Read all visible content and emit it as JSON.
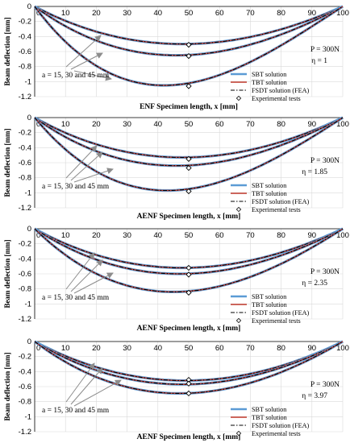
{
  "chart_data": [
    {
      "type": "line",
      "xlabel": "ENF Specimen length, x [mm]",
      "ylabel": "Beam deflection [mm]",
      "xlim": [
        0,
        100
      ],
      "ylim": [
        -1.2,
        0
      ],
      "xticks": [
        "0",
        "10",
        "20",
        "30",
        "40",
        "50",
        "60",
        "70",
        "80",
        "90",
        "100"
      ],
      "yticks": [
        "0",
        "-0.2",
        "-0.4",
        "-0.6",
        "-0.8",
        "-1",
        "-1.2"
      ],
      "annotations": [
        "P = 300N",
        "η = 1"
      ],
      "crack_label": "a = 15, 30 and 45 mm",
      "legend": [
        "SBT solution",
        "TBT solution",
        "FSDT solution (FEA)",
        "Experimental tests"
      ],
      "curves": [
        {
          "a": 15,
          "min_x": 48,
          "min_y": -0.5
        },
        {
          "a": 30,
          "min_x": 46,
          "min_y": -0.65
        },
        {
          "a": 45,
          "min_x": 42,
          "min_y": -1.05
        }
      ],
      "experimental": [
        {
          "x": 50,
          "y": -0.51
        },
        {
          "x": 50,
          "y": -0.66
        },
        {
          "x": 50,
          "y": -1.06
        }
      ]
    },
    {
      "type": "line",
      "xlabel": "AENF Specimen length, x [mm]",
      "ylabel": "Beam deflection [mm]",
      "xlim": [
        0,
        100
      ],
      "ylim": [
        -1.2,
        0
      ],
      "xticks": [
        "0",
        "10",
        "20",
        "30",
        "40",
        "50",
        "60",
        "70",
        "80",
        "90",
        "100"
      ],
      "yticks": [
        "0",
        "-0.2",
        "-0.4",
        "-0.6",
        "-0.8",
        "-1",
        "-1.2"
      ],
      "annotations": [
        "P = 300N",
        "η = 1.85"
      ],
      "crack_label": "a = 15, 30 and 45 mm",
      "legend": [
        "SBT solution",
        "TBT solution",
        "FSDT solution (FEA)",
        "Experimental tests"
      ],
      "curves": [
        {
          "a": 15,
          "min_x": 48,
          "min_y": -0.53
        },
        {
          "a": 30,
          "min_x": 46,
          "min_y": -0.64
        },
        {
          "a": 45,
          "min_x": 43,
          "min_y": -0.97
        }
      ],
      "experimental": [
        {
          "x": 50,
          "y": -0.55
        },
        {
          "x": 50,
          "y": -0.67
        },
        {
          "x": 50,
          "y": -0.98
        }
      ]
    },
    {
      "type": "line",
      "xlabel": "AENF Specimen length, x [mm]",
      "ylabel": "Beam deflection [mm]",
      "xlim": [
        0,
        100
      ],
      "ylim": [
        -1.2,
        0
      ],
      "xticks": [
        "0",
        "10",
        "20",
        "30",
        "40",
        "50",
        "60",
        "70",
        "80",
        "90",
        "100"
      ],
      "yticks": [
        "0",
        "-0.2",
        "-0.4",
        "-0.6",
        "-0.8",
        "-1",
        "-1.2"
      ],
      "annotations": [
        "P = 300N",
        "η = 2.35"
      ],
      "crack_label": "a = 15, 30 and 45 mm",
      "legend": [
        "SBT solution",
        "TBT solution",
        "FSDT solution (FEA)",
        "Experimental tests"
      ],
      "curves": [
        {
          "a": 15,
          "min_x": 48,
          "min_y": -0.52
        },
        {
          "a": 30,
          "min_x": 47,
          "min_y": -0.6
        },
        {
          "a": 45,
          "min_x": 45,
          "min_y": -0.84
        }
      ],
      "experimental": [
        {
          "x": 50,
          "y": -0.52
        },
        {
          "x": 50,
          "y": -0.61
        },
        {
          "x": 50,
          "y": -0.85
        }
      ]
    },
    {
      "type": "line",
      "xlabel": "AENF Specimen length, x [mm]",
      "ylabel": "Beam deflection [mm]",
      "xlim": [
        0,
        100
      ],
      "ylim": [
        -1.2,
        0
      ],
      "xticks": [
        "0",
        "10",
        "20",
        "30",
        "40",
        "50",
        "60",
        "70",
        "80",
        "90",
        "100"
      ],
      "yticks": [
        "0",
        "-0.2",
        "-0.4",
        "-0.6",
        "-0.8",
        "-1",
        "-1.2"
      ],
      "annotations": [
        "P = 300N",
        "η = 3.97"
      ],
      "crack_label": "a = 15, 30 and 45 mm",
      "legend": [
        "SBT solution",
        "TBT solution",
        "FSDT solution (FEA)",
        "Experimental tests"
      ],
      "curves": [
        {
          "a": 15,
          "min_x": 49,
          "min_y": -0.52
        },
        {
          "a": 30,
          "min_x": 48,
          "min_y": -0.57
        },
        {
          "a": 45,
          "min_x": 47,
          "min_y": -0.69
        }
      ],
      "experimental": [
        {
          "x": 50,
          "y": -0.51
        },
        {
          "x": 50,
          "y": -0.56
        },
        {
          "x": 50,
          "y": -0.69
        }
      ]
    }
  ],
  "colors": {
    "sbt": "#5b9bd5",
    "tbt": "#c0392b",
    "fsdt": "#000000",
    "experimental": "#000000",
    "arrow": "#8c8c8c",
    "grid": "#d9d9d9"
  }
}
